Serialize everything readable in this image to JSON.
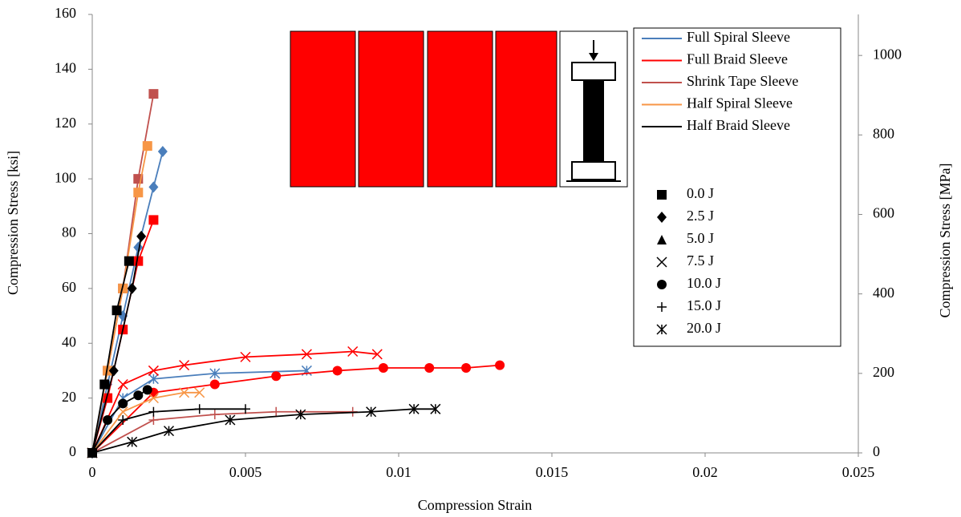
{
  "chart_data": {
    "type": "line",
    "x_label": "Compression Strain",
    "y_label": "Compression Stress [ksi]",
    "y2_label": "Compression Stress [MPa]",
    "xlim": [
      0,
      0.025
    ],
    "xticks": [
      0,
      0.005,
      0.01,
      0.015,
      0.02,
      0.025
    ],
    "ylim": [
      0,
      160
    ],
    "yticks": [
      0,
      20,
      40,
      60,
      80,
      100,
      120,
      140,
      160
    ],
    "y2lim": [
      0,
      1103.2
    ],
    "y2ticks": [
      0,
      200,
      400,
      600,
      800,
      1000
    ],
    "grid": false,
    "legend": "upper right",
    "markers": [
      {
        "name": "0.0 J",
        "symbol": "square"
      },
      {
        "name": "2.5 J",
        "symbol": "diamond"
      },
      {
        "name": "5.0 J",
        "symbol": "triangle"
      },
      {
        "name": "7.5 J",
        "symbol": "x"
      },
      {
        "name": "10.0 J",
        "symbol": "circle"
      },
      {
        "name": "15.0 J",
        "symbol": "plus"
      },
      {
        "name": "20.0 J",
        "symbol": "asterisk"
      }
    ],
    "series": [
      {
        "name": "Full Spiral Sleeve",
        "color": "#4a7ebb",
        "curves": [
          {
            "marker": 1,
            "x": [
              0,
              0.0005,
              0.001,
              0.0015,
              0.002,
              0.0023
            ],
            "y": [
              0,
              25,
              50,
              75,
              97,
              110
            ]
          },
          {
            "marker": 6,
            "x": [
              0,
              0.001,
              0.002,
              0.004,
              0.007
            ],
            "y": [
              0,
              20,
              27,
              29,
              30
            ]
          }
        ]
      },
      {
        "name": "Full Braid Sleeve",
        "color": "#ff0000",
        "curves": [
          {
            "marker": 0,
            "x": [
              0,
              0.0005,
              0.001,
              0.0015,
              0.002
            ],
            "y": [
              0,
              20,
              45,
              70,
              85
            ]
          },
          {
            "marker": 3,
            "x": [
              0,
              0.001,
              0.002,
              0.003,
              0.005,
              0.007,
              0.0085,
              0.0093
            ],
            "y": [
              0,
              25,
              30,
              32,
              35,
              36,
              37,
              36
            ]
          },
          {
            "marker": 4,
            "x": [
              0,
              0.002,
              0.004,
              0.006,
              0.008,
              0.0095,
              0.011,
              0.0122,
              0.0133
            ],
            "y": [
              0,
              22,
              25,
              28,
              30,
              31,
              31,
              31,
              32
            ]
          }
        ]
      },
      {
        "name": "Shrink Tape Sleeve",
        "color": "#c0504d",
        "curves": [
          {
            "marker": 0,
            "x": [
              0,
              0.0005,
              0.001,
              0.0015,
              0.002
            ],
            "y": [
              0,
              30,
              60,
              100,
              131
            ]
          },
          {
            "marker": 5,
            "x": [
              0,
              0.002,
              0.004,
              0.006,
              0.0085
            ],
            "y": [
              0,
              12,
              14,
              15,
              15
            ]
          }
        ]
      },
      {
        "name": "Half Spiral Sleeve",
        "color": "#f79646",
        "curves": [
          {
            "marker": 0,
            "x": [
              0,
              0.0005,
              0.001,
              0.0015,
              0.0018
            ],
            "y": [
              0,
              30,
              60,
              95,
              112
            ]
          },
          {
            "marker": 3,
            "x": [
              0,
              0.001,
              0.002,
              0.003,
              0.0035
            ],
            "y": [
              0,
              15,
              20,
              22,
              22
            ]
          }
        ]
      },
      {
        "name": "Half Braid Sleeve",
        "color": "#000000",
        "curves": [
          {
            "marker": 0,
            "x": [
              0,
              0.0004,
              0.0008,
              0.0012
            ],
            "y": [
              0,
              25,
              52,
              70
            ]
          },
          {
            "marker": 1,
            "x": [
              0,
              0.0007,
              0.0013,
              0.0016
            ],
            "y": [
              0,
              30,
              60,
              79
            ]
          },
          {
            "marker": 4,
            "x": [
              0,
              0.0005,
              0.001,
              0.0015,
              0.0018
            ],
            "y": [
              0,
              12,
              18,
              21,
              23
            ]
          },
          {
            "marker": 5,
            "x": [
              0,
              0.001,
              0.002,
              0.0035,
              0.005
            ],
            "y": [
              0,
              12,
              15,
              16,
              16
            ]
          },
          {
            "marker": 6,
            "x": [
              0,
              0.0013,
              0.0025,
              0.0045,
              0.0068,
              0.0091,
              0.0105,
              0.0112
            ],
            "y": [
              0,
              4,
              8,
              12,
              14,
              15,
              16,
              16
            ]
          }
        ]
      }
    ]
  }
}
